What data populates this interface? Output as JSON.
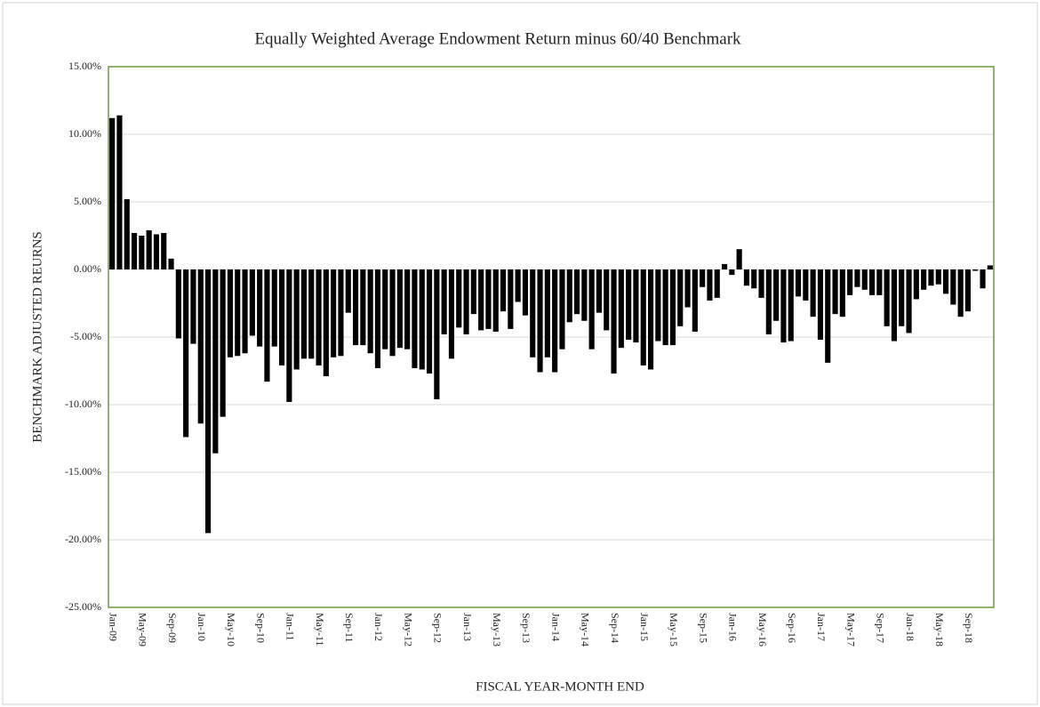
{
  "chart_data": {
    "type": "bar",
    "title": "Equally  Weighted  Average  Endowment Return  minus  60/40  Benchmark",
    "x_label": "FISCAL  YEAR-MONTH  END",
    "y_label": "BENCHMARK  ADJUSTED  REURNS",
    "color": "#000000",
    "grid": true,
    "categories": [
      "Jan-09",
      null,
      null,
      null,
      "May-09",
      null,
      null,
      null,
      "Sep-09",
      null,
      null,
      null,
      "Jan-10",
      null,
      null,
      null,
      "May-10",
      null,
      null,
      null,
      "Sep-10",
      null,
      null,
      null,
      "Jan-11",
      null,
      null,
      null,
      "May-11",
      null,
      null,
      null,
      "Sep-11",
      null,
      null,
      null,
      "Jan-12",
      null,
      null,
      null,
      "May-12",
      null,
      null,
      null,
      "Sep-12",
      null,
      null,
      null,
      "Jan-13",
      null,
      null,
      null,
      "May-13",
      null,
      null,
      null,
      "Sep-13",
      null,
      null,
      null,
      "Jan-14",
      null,
      null,
      null,
      "May-14",
      null,
      null,
      null,
      "Sep-14",
      null,
      null,
      null,
      "Jan-15",
      null,
      null,
      null,
      "May-15",
      null,
      null,
      null,
      "Sep-15",
      null,
      null,
      null,
      "Jan-16",
      null,
      null,
      null,
      "May-16",
      null,
      null,
      null,
      "Sep-16",
      null,
      null,
      null,
      "Jan-17",
      null,
      null,
      null,
      "May-17",
      null,
      null,
      null,
      "Sep-17",
      null,
      null,
      null,
      "Jan-18",
      null,
      null,
      null,
      "May-18",
      null,
      null,
      null,
      "Sep-18",
      null,
      null,
      null
    ],
    "values": [
      11.2,
      11.4,
      5.2,
      2.7,
      2.5,
      2.9,
      2.6,
      2.7,
      0.8,
      -5.1,
      -12.4,
      -5.5,
      -11.4,
      -19.5,
      -13.6,
      -10.9,
      -6.5,
      -6.4,
      -6.2,
      -4.9,
      -5.7,
      -8.3,
      -5.7,
      -7.1,
      -9.8,
      -7.4,
      -6.6,
      -6.6,
      -7.1,
      -7.9,
      -6.5,
      -6.4,
      -3.2,
      -5.6,
      -5.6,
      -6.2,
      -7.3,
      -5.9,
      -6.4,
      -5.8,
      -5.9,
      -7.3,
      -7.4,
      -7.7,
      -9.6,
      -4.8,
      -6.6,
      -4.3,
      -4.8,
      -3.3,
      -4.5,
      -4.4,
      -4.6,
      -3.1,
      -4.4,
      -2.4,
      -3.4,
      -6.5,
      -7.6,
      -6.5,
      -7.6,
      -5.9,
      -3.9,
      -3.3,
      -3.8,
      -5.9,
      -3.2,
      -4.5,
      -7.7,
      -5.8,
      -5.2,
      -5.4,
      -7.1,
      -7.4,
      -5.3,
      -5.6,
      -5.6,
      -4.2,
      -2.8,
      -4.6,
      -1.3,
      -2.3,
      -2.1,
      0.4,
      -0.4,
      1.5,
      -1.2,
      -1.4,
      -2.1,
      -4.8,
      -3.8,
      -5.4,
      -5.3,
      -2.0,
      -2.3,
      -3.5,
      -5.2,
      -6.9,
      -3.3,
      -3.5,
      -1.9,
      -1.3,
      -1.5,
      -1.9,
      -1.9,
      -4.2,
      -5.3,
      -4.2,
      -4.7,
      -2.2,
      -1.5,
      -1.2,
      -1.1,
      -1.8,
      -2.6,
      -3.5,
      -3.1,
      -0.1,
      -1.4,
      0.3
    ],
    "ylim": [
      -25,
      15
    ],
    "yticks": [
      {
        "value": -25,
        "label": "-25.00%"
      },
      {
        "value": -20,
        "label": "-20.00%"
      },
      {
        "value": -15,
        "label": "-15.00%"
      },
      {
        "value": -10,
        "label": "-10.00%"
      },
      {
        "value": -5,
        "label": "-5.00%"
      },
      {
        "value": 0,
        "label": "0.00%"
      },
      {
        "value": 5,
        "label": "5.00%"
      },
      {
        "value": 10,
        "label": "10.00%"
      },
      {
        "value": 15,
        "label": "15.00%"
      }
    ]
  }
}
